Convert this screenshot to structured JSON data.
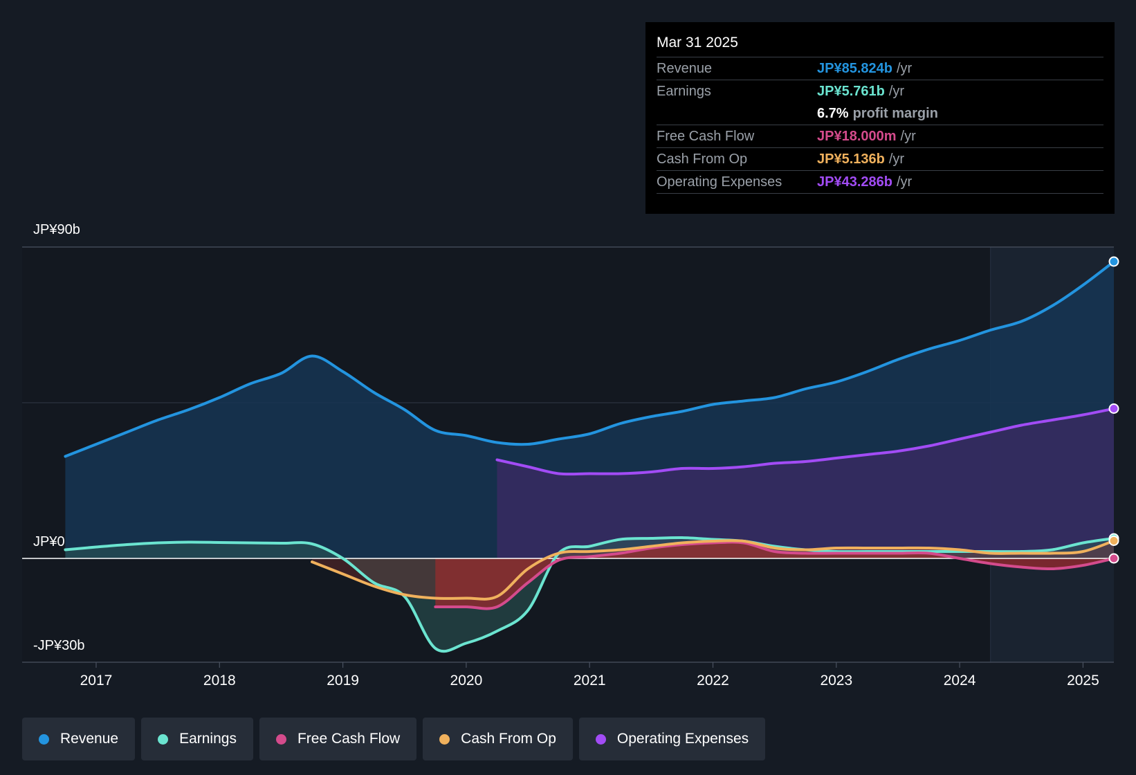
{
  "tooltip": {
    "date": "Mar 31 2025",
    "rows": [
      {
        "label": "Revenue",
        "value": "JP¥85.824b",
        "unit": "/yr",
        "color": "#2394df"
      },
      {
        "label": "Earnings",
        "value": "JP¥5.761b",
        "unit": "/yr",
        "color": "#6be4d0"
      },
      {
        "label": "",
        "value": "6.7%",
        "unit": "profit margin",
        "color": "#ffffff"
      },
      {
        "label": "Free Cash Flow",
        "value": "JP¥18.000m",
        "unit": "/yr",
        "color": "#d44b8c"
      },
      {
        "label": "Cash From Op",
        "value": "JP¥5.136b",
        "unit": "/yr",
        "color": "#f0b15d"
      },
      {
        "label": "Operating Expenses",
        "value": "JP¥43.286b",
        "unit": "/yr",
        "color": "#a24cf5"
      }
    ]
  },
  "legend": [
    {
      "label": "Revenue",
      "color": "#2394df"
    },
    {
      "label": "Earnings",
      "color": "#6be4d0"
    },
    {
      "label": "Free Cash Flow",
      "color": "#d44b8c"
    },
    {
      "label": "Cash From Op",
      "color": "#f0b15d"
    },
    {
      "label": "Operating Expenses",
      "color": "#a24cf5"
    }
  ],
  "chart_data": {
    "type": "area",
    "y_tick_labels": [
      "JP¥90b",
      "JP¥0",
      "-JP¥30b"
    ],
    "ylim": [
      -30,
      90
    ],
    "xlim": [
      2016.4,
      2025.25
    ],
    "x_ticks": [
      2017,
      2018,
      2019,
      2020,
      2021,
      2022,
      2023,
      2024,
      2025
    ],
    "x_tick_labels": [
      "2017",
      "2018",
      "2019",
      "2020",
      "2021",
      "2022",
      "2023",
      "2024",
      "2025"
    ],
    "forecast_shade_start": 2024.25,
    "grid": true,
    "series": [
      {
        "name": "Revenue",
        "color": "#2394df",
        "x": [
          2016.75,
          2017.0,
          2017.25,
          2017.5,
          2017.75,
          2018.0,
          2018.25,
          2018.5,
          2018.75,
          2019.0,
          2019.25,
          2019.5,
          2019.75,
          2020.0,
          2020.25,
          2020.5,
          2020.75,
          2021.0,
          2021.25,
          2021.5,
          2021.75,
          2022.0,
          2022.25,
          2022.5,
          2022.75,
          2023.0,
          2023.25,
          2023.5,
          2023.75,
          2024.0,
          2024.25,
          2024.5,
          2024.75,
          2025.0,
          2025.25
        ],
        "values": [
          29.5,
          33.0,
          36.5,
          40.0,
          43.0,
          46.5,
          50.5,
          53.5,
          58.5,
          54.0,
          48.0,
          43.0,
          37.0,
          35.5,
          33.5,
          33.0,
          34.5,
          36.0,
          39.0,
          41.0,
          42.5,
          44.5,
          45.5,
          46.5,
          49.0,
          51.0,
          54.0,
          57.5,
          60.5,
          63.0,
          66.0,
          68.5,
          73.0,
          79.0,
          85.8
        ]
      },
      {
        "name": "Operating Expenses",
        "color": "#a24cf5",
        "x": [
          2020.25,
          2020.5,
          2020.75,
          2021.0,
          2021.25,
          2021.5,
          2021.75,
          2022.0,
          2022.25,
          2022.5,
          2022.75,
          2023.0,
          2023.25,
          2023.5,
          2023.75,
          2024.0,
          2024.25,
          2024.5,
          2024.75,
          2025.0,
          2025.25
        ],
        "values": [
          28.5,
          26.5,
          24.5,
          24.5,
          24.5,
          25.0,
          26.0,
          26.0,
          26.5,
          27.5,
          28.0,
          29.0,
          30.0,
          31.0,
          32.5,
          34.5,
          36.5,
          38.5,
          40.0,
          41.5,
          43.3
        ]
      },
      {
        "name": "Earnings",
        "color": "#6be4d0",
        "x": [
          2016.75,
          2017.0,
          2017.25,
          2017.5,
          2017.75,
          2018.0,
          2018.25,
          2018.5,
          2018.75,
          2019.0,
          2019.25,
          2019.5,
          2019.75,
          2020.0,
          2020.25,
          2020.5,
          2020.75,
          2021.0,
          2021.25,
          2021.5,
          2021.75,
          2022.0,
          2022.25,
          2022.5,
          2022.75,
          2023.0,
          2023.25,
          2023.5,
          2023.75,
          2024.0,
          2024.25,
          2024.5,
          2024.75,
          2025.0,
          2025.25
        ],
        "values": [
          2.5,
          3.3,
          4.0,
          4.5,
          4.7,
          4.6,
          4.5,
          4.4,
          4.2,
          0.0,
          -7.0,
          -11.0,
          -26.0,
          -24.5,
          -21.0,
          -15.0,
          1.5,
          3.5,
          5.5,
          5.8,
          6.0,
          5.5,
          5.0,
          3.5,
          2.5,
          2.0,
          2.0,
          2.0,
          2.0,
          2.0,
          2.0,
          2.0,
          2.5,
          4.5,
          5.8
        ]
      },
      {
        "name": "Free Cash Flow",
        "color": "#d44b8c",
        "x": [
          2019.75,
          2020.0,
          2020.25,
          2020.5,
          2020.75,
          2021.0,
          2021.25,
          2021.5,
          2021.75,
          2022.0,
          2022.25,
          2022.5,
          2022.75,
          2023.0,
          2023.25,
          2023.5,
          2023.75,
          2024.0,
          2024.25,
          2024.5,
          2024.75,
          2025.0,
          2025.25
        ],
        "values": [
          -14.0,
          -14.0,
          -14.0,
          -7.0,
          -0.5,
          0.5,
          1.5,
          3.0,
          4.0,
          4.5,
          4.5,
          2.0,
          1.5,
          1.5,
          1.5,
          1.5,
          1.5,
          0.0,
          -1.5,
          -2.5,
          -3.0,
          -2.0,
          0.0
        ]
      },
      {
        "name": "Cash From Op",
        "color": "#f0b15d",
        "x": [
          2018.75,
          2019.0,
          2019.25,
          2019.5,
          2019.75,
          2020.0,
          2020.25,
          2020.5,
          2020.75,
          2021.0,
          2021.25,
          2021.5,
          2021.75,
          2022.0,
          2022.25,
          2022.5,
          2022.75,
          2023.0,
          2023.25,
          2023.5,
          2023.75,
          2024.0,
          2024.25,
          2024.5,
          2024.75,
          2025.0,
          2025.25
        ],
        "values": [
          -1.0,
          -4.5,
          -8.0,
          -10.5,
          -11.5,
          -11.5,
          -11.0,
          -3.0,
          1.5,
          2.0,
          2.5,
          3.5,
          4.5,
          5.0,
          5.0,
          3.0,
          2.5,
          3.0,
          3.0,
          3.0,
          3.0,
          2.5,
          1.5,
          1.5,
          1.5,
          2.0,
          5.1
        ]
      }
    ]
  }
}
